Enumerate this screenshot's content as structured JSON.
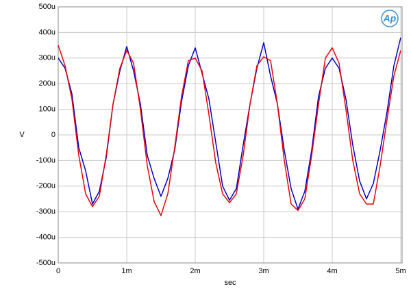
{
  "chart_data": {
    "type": "line",
    "logo": "Ap",
    "ylabel": "V",
    "xlabel": "sec",
    "x": [
      0,
      0.0001,
      0.0002,
      0.0003,
      0.0004,
      0.0005,
      0.0006,
      0.0007,
      0.0008,
      0.0009,
      0.001,
      0.0011,
      0.0012,
      0.0013,
      0.0014,
      0.0015,
      0.0016,
      0.0017,
      0.0018,
      0.0019,
      0.002,
      0.0021,
      0.0022,
      0.0023,
      0.0024,
      0.0025,
      0.0026,
      0.0027,
      0.0028,
      0.0029,
      0.003,
      0.0031,
      0.0032,
      0.0033,
      0.0034,
      0.0035,
      0.0036,
      0.0037,
      0.0038,
      0.0039,
      0.004,
      0.0041,
      0.0042,
      0.0043,
      0.0044,
      0.0045,
      0.0046,
      0.0047,
      0.0048,
      0.0049,
      0.005
    ],
    "series": [
      {
        "color": "#0000cc",
        "values": [
          0.0003,
          0.00026,
          0.00016,
          -5e-05,
          -0.00014,
          -0.00027,
          -0.00022,
          -9e-05,
          0.00012,
          0.00025,
          0.000345,
          0.00025,
          0.00012,
          -8e-05,
          -0.00017,
          -0.00024,
          -0.00017,
          -6e-05,
          0.00013,
          0.00027,
          0.00034,
          0.00024,
          0.00014,
          -3e-05,
          -0.0002,
          -0.000255,
          -0.00021,
          -4e-05,
          0.00012,
          0.00026,
          0.00036,
          0.00023,
          0.00012,
          -6e-05,
          -0.00021,
          -0.00029,
          -0.00022,
          -6e-05,
          0.00015,
          0.00026,
          0.0003,
          0.00026,
          0.00014,
          -4e-05,
          -0.00018,
          -0.00025,
          -0.00019,
          -6e-05,
          9e-05,
          0.00027,
          0.00038
        ]
      },
      {
        "color": "#ee0000",
        "values": [
          0.00035,
          0.00027,
          0.00014,
          -8e-05,
          -0.00023,
          -0.00028,
          -0.00024,
          -8e-05,
          0.00012,
          0.00026,
          0.00033,
          0.00028,
          0.0001,
          -0.00012,
          -0.00026,
          -0.000315,
          -0.00023,
          -5e-05,
          0.00015,
          0.00029,
          0.0003,
          0.00025,
          8e-05,
          -0.00011,
          -0.00023,
          -0.000265,
          -0.00023,
          -8e-05,
          0.00012,
          0.00027,
          0.000305,
          0.00029,
          0.00012,
          -0.0001,
          -0.00027,
          -0.000295,
          -0.00025,
          -8e-05,
          0.00012,
          0.0003,
          0.00034,
          0.00028,
          0.0001,
          -0.0001,
          -0.00023,
          -0.00027,
          -0.00027,
          -0.00012,
          6e-05,
          0.00023,
          0.00033
        ]
      }
    ],
    "xlim": [
      0,
      0.00502
    ],
    "ylim": [
      -0.0005,
      0.0005
    ],
    "xticks": [
      0,
      {
        "value": 0.001,
        "label": "1m"
      },
      {
        "value": 0.002,
        "label": "2m"
      },
      {
        "value": 0.003,
        "label": "3m"
      },
      {
        "value": 0.004,
        "label": "4m"
      },
      {
        "value": 0.005,
        "label": "5m"
      }
    ],
    "yticks": [
      {
        "value": -0.0005,
        "label": "-500u"
      },
      {
        "value": -0.0004,
        "label": "-400u"
      },
      {
        "value": -0.0003,
        "label": "-300u"
      },
      {
        "value": -0.0002,
        "label": "-200u"
      },
      {
        "value": -0.0001,
        "label": "-100u"
      },
      0,
      {
        "value": 0.0001,
        "label": "100u"
      },
      {
        "value": 0.0002,
        "label": "200u"
      },
      {
        "value": 0.0003,
        "label": "300u"
      },
      {
        "value": 0.0004,
        "label": "400u"
      },
      {
        "value": 0.0005,
        "label": "500u"
      }
    ],
    "grid": true
  }
}
